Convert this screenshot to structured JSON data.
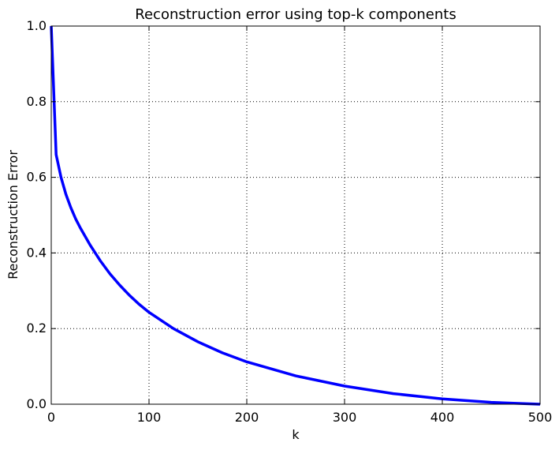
{
  "chart_data": {
    "type": "line",
    "title": "Reconstruction error using top-k components",
    "xlabel": "k",
    "ylabel": "Reconstruction Error",
    "xlim": [
      0,
      500
    ],
    "ylim": [
      0.0,
      1.0
    ],
    "x_ticks": [
      0,
      100,
      200,
      300,
      400,
      500
    ],
    "y_ticks": [
      0.0,
      0.2,
      0.4,
      0.6,
      0.8,
      1.0
    ],
    "x_tick_labels": [
      "0",
      "100",
      "200",
      "300",
      "400",
      "500"
    ],
    "y_tick_labels": [
      "0.0",
      "0.2",
      "0.4",
      "0.6",
      "0.8",
      "1.0"
    ],
    "grid": true,
    "legend": "none",
    "series": [
      {
        "color": "#0000ff",
        "x": [
          0,
          5,
          10,
          15,
          20,
          25,
          30,
          40,
          50,
          60,
          70,
          80,
          90,
          100,
          125,
          150,
          175,
          200,
          250,
          300,
          350,
          400,
          450,
          500
        ],
        "y": [
          1.0,
          0.66,
          0.6,
          0.555,
          0.52,
          0.49,
          0.465,
          0.42,
          0.38,
          0.345,
          0.315,
          0.288,
          0.264,
          0.243,
          0.2,
          0.165,
          0.136,
          0.112,
          0.075,
          0.048,
          0.028,
          0.014,
          0.005,
          0.0
        ]
      }
    ]
  }
}
